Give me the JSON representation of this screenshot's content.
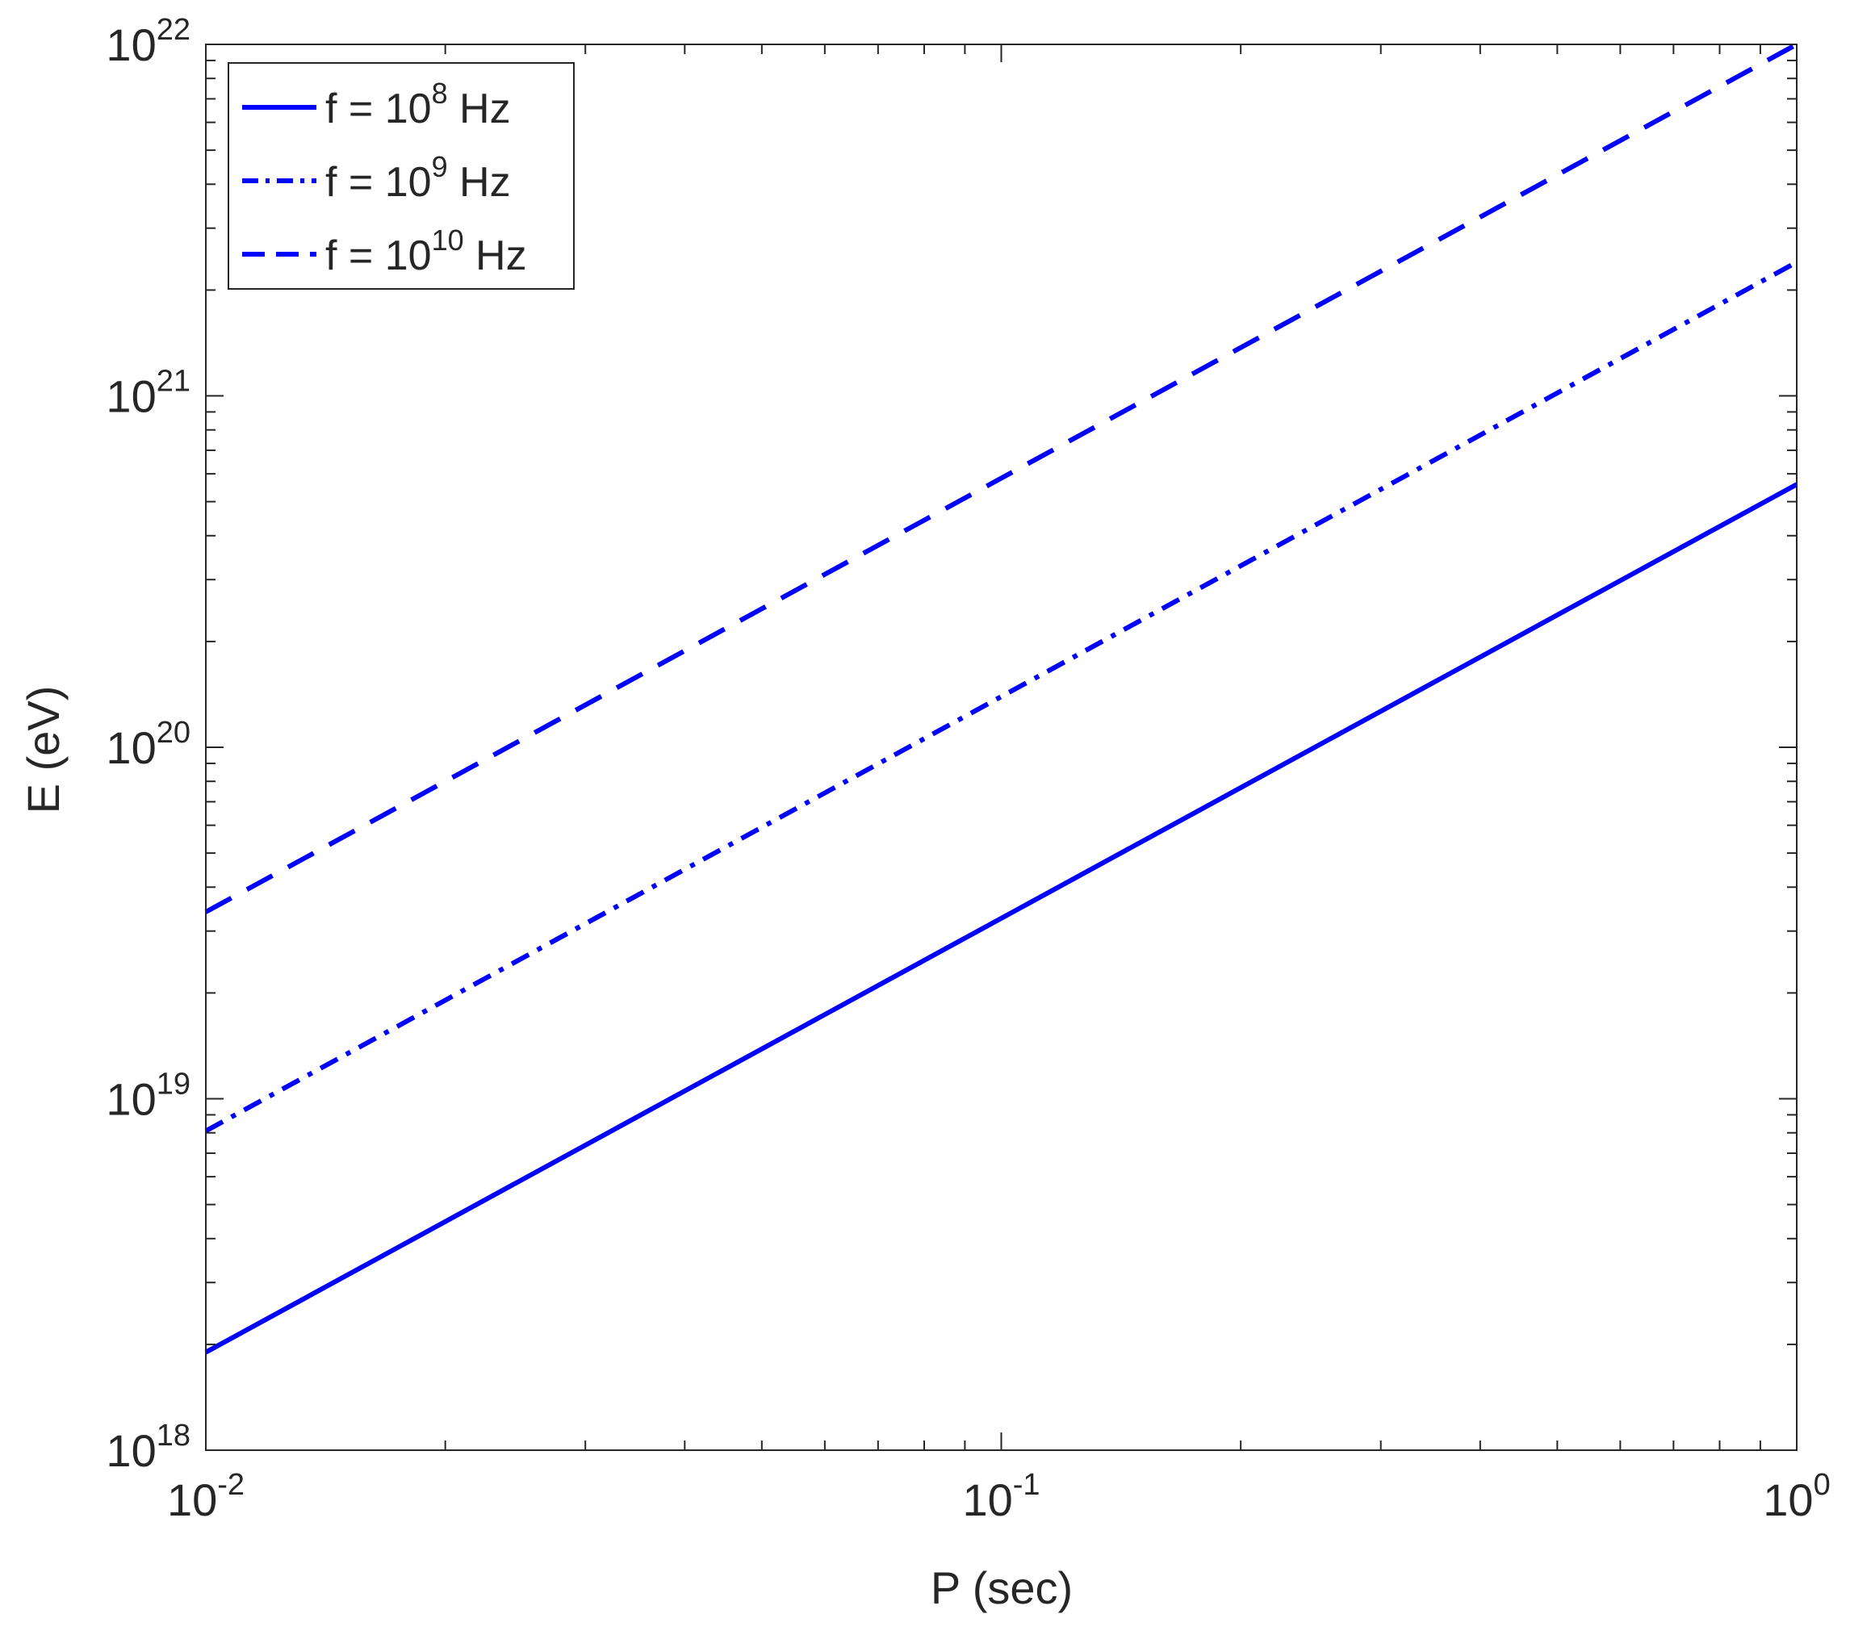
{
  "chart_data": {
    "type": "line",
    "xlabel": "P (sec)",
    "ylabel": "E (eV)",
    "xscale": "log",
    "yscale": "log",
    "xlim": [
      0.01,
      1
    ],
    "ylim": [
      1e+18,
      1e+22
    ],
    "grid": false,
    "legend_position": "top-left",
    "x_ticks": [
      {
        "value": 0.01,
        "base": "10",
        "exp": "-2"
      },
      {
        "value": 0.1,
        "base": "10",
        "exp": "-1"
      },
      {
        "value": 1,
        "base": "10",
        "exp": "0"
      }
    ],
    "y_ticks": [
      {
        "value": 1e+18,
        "base": "10",
        "exp": "18"
      },
      {
        "value": 1e+19,
        "base": "10",
        "exp": "19"
      },
      {
        "value": 1e+20,
        "base": "10",
        "exp": "20"
      },
      {
        "value": 1e+21,
        "base": "10",
        "exp": "21"
      },
      {
        "value": 1e+22,
        "base": "10",
        "exp": "22"
      }
    ],
    "series": [
      {
        "name": "f = 10^8 Hz",
        "legend_prefix": "f = 10",
        "legend_exp": "8",
        "legend_suffix": " Hz",
        "style": "solid",
        "color": "#0000ff",
        "x": [
          0.01,
          1
        ],
        "y": [
          1.9e+18,
          5.6e+20
        ]
      },
      {
        "name": "f = 10^9 Hz",
        "legend_prefix": "f = 10",
        "legend_exp": "9",
        "legend_suffix": " Hz",
        "style": "dashdot",
        "color": "#0000ff",
        "x": [
          0.01,
          1
        ],
        "y": [
          8.1e+18,
          2.4e+21
        ]
      },
      {
        "name": "f = 10^10 Hz",
        "legend_prefix": "f = 10",
        "legend_exp": "10",
        "legend_suffix": " Hz",
        "style": "dashed",
        "color": "#0000ff",
        "x": [
          0.01,
          1
        ],
        "y": [
          3.4e+19,
          1e+22
        ]
      }
    ]
  }
}
